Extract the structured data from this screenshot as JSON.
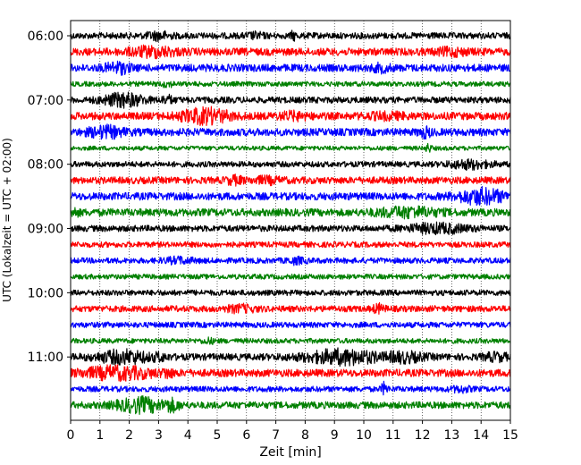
{
  "chart_data": {
    "type": "line",
    "title": "",
    "xlabel": "Zeit  [min]",
    "ylabel": "UTC (Lokalzeit = UTC + 02:00)",
    "xlim": [
      0,
      15
    ],
    "x_ticks": [
      "0",
      "1",
      "2",
      "3",
      "4",
      "5",
      "6",
      "7",
      "8",
      "9",
      "10",
      "11",
      "12",
      "13",
      "14",
      "15"
    ],
    "y_tick_labels": [
      "06:00",
      "07:00",
      "08:00",
      "09:00",
      "10:00",
      "11:00"
    ],
    "grid": "vertical dotted",
    "trace_colors": [
      "#000000",
      "#ff0000",
      "#0000ff",
      "#008000"
    ],
    "traces": [
      {
        "start": "06:00",
        "color": "#000000",
        "amplitude": 0.5,
        "bursts": [
          [
            3.0,
            0.4,
            1.0
          ],
          [
            6.3,
            0.3,
            0.8
          ],
          [
            7.6,
            0.1,
            1.0
          ]
        ]
      },
      {
        "start": "06:15",
        "color": "#ff0000",
        "amplitude": 0.6,
        "bursts": [
          [
            2.8,
            0.8,
            1.2
          ],
          [
            13.0,
            0.5,
            1.0
          ]
        ]
      },
      {
        "start": "06:30",
        "color": "#0000ff",
        "amplitude": 0.6,
        "bursts": [
          [
            1.6,
            0.4,
            1.3
          ],
          [
            10.6,
            0.3,
            1.0
          ]
        ]
      },
      {
        "start": "06:45",
        "color": "#008000",
        "amplitude": 0.4,
        "bursts": [
          [
            3.3,
            0.2,
            0.7
          ]
        ]
      },
      {
        "start": "07:00",
        "color": "#000000",
        "amplitude": 0.5,
        "bursts": [
          [
            1.8,
            0.7,
            1.4
          ],
          [
            3.3,
            0.2,
            1.0
          ]
        ]
      },
      {
        "start": "07:15",
        "color": "#ff0000",
        "amplitude": 0.6,
        "bursts": [
          [
            4.6,
            0.8,
            1.6
          ],
          [
            7.6,
            0.5,
            1.0
          ],
          [
            10.8,
            0.7,
            0.9
          ]
        ]
      },
      {
        "start": "07:30",
        "color": "#0000ff",
        "amplitude": 0.6,
        "bursts": [
          [
            1.2,
            0.6,
            1.3
          ],
          [
            12.1,
            0.2,
            1.2
          ]
        ]
      },
      {
        "start": "07:45",
        "color": "#008000",
        "amplitude": 0.35,
        "bursts": [
          [
            12.2,
            0.1,
            0.9
          ]
        ]
      },
      {
        "start": "08:00",
        "color": "#000000",
        "amplitude": 0.45,
        "bursts": [
          [
            13.6,
            0.7,
            1.0
          ]
        ]
      },
      {
        "start": "08:15",
        "color": "#ff0000",
        "amplitude": 0.55,
        "bursts": [
          [
            5.6,
            0.3,
            1.0
          ],
          [
            6.7,
            0.5,
            0.9
          ]
        ]
      },
      {
        "start": "08:30",
        "color": "#0000ff",
        "amplitude": 0.6,
        "bursts": [
          [
            14.0,
            0.8,
            1.6
          ]
        ]
      },
      {
        "start": "08:45",
        "color": "#008000",
        "amplitude": 0.6,
        "bursts": [
          [
            0.1,
            0.2,
            1.0
          ],
          [
            11.5,
            1.0,
            1.2
          ]
        ]
      },
      {
        "start": "09:00",
        "color": "#000000",
        "amplitude": 0.5,
        "bursts": [
          [
            12.5,
            1.0,
            1.1
          ]
        ]
      },
      {
        "start": "09:15",
        "color": "#ff0000",
        "amplitude": 0.45,
        "bursts": []
      },
      {
        "start": "09:30",
        "color": "#0000ff",
        "amplitude": 0.45,
        "bursts": [
          [
            3.7,
            0.5,
            0.8
          ],
          [
            7.7,
            0.3,
            0.8
          ]
        ]
      },
      {
        "start": "09:45",
        "color": "#008000",
        "amplitude": 0.4,
        "bursts": []
      },
      {
        "start": "10:00",
        "color": "#000000",
        "amplitude": 0.45,
        "bursts": []
      },
      {
        "start": "10:15",
        "color": "#ff0000",
        "amplitude": 0.5,
        "bursts": [
          [
            5.8,
            0.5,
            0.9
          ],
          [
            10.5,
            0.2,
            1.0
          ]
        ]
      },
      {
        "start": "10:30",
        "color": "#0000ff",
        "amplitude": 0.45,
        "bursts": []
      },
      {
        "start": "10:45",
        "color": "#008000",
        "amplitude": 0.4,
        "bursts": [
          [
            4.7,
            0.2,
            0.7
          ]
        ]
      },
      {
        "start": "11:00",
        "color": "#000000",
        "amplitude": 0.55,
        "bursts": [
          [
            1.8,
            0.9,
            1.4
          ],
          [
            3.0,
            0.3,
            1.0
          ],
          [
            9.3,
            1.3,
            1.5
          ],
          [
            11.3,
            0.7,
            1.2
          ],
          [
            14.5,
            0.4,
            1.0
          ]
        ]
      },
      {
        "start": "11:15",
        "color": "#ff0000",
        "amplitude": 0.6,
        "bursts": [
          [
            1.6,
            1.2,
            1.4
          ],
          [
            3.3,
            0.2,
            1.2
          ]
        ]
      },
      {
        "start": "11:30",
        "color": "#0000ff",
        "amplitude": 0.45,
        "bursts": [
          [
            10.7,
            0.1,
            1.3
          ],
          [
            13.3,
            0.3,
            0.8
          ]
        ]
      },
      {
        "start": "11:45",
        "color": "#008000",
        "amplitude": 0.55,
        "bursts": [
          [
            2.4,
            0.8,
            1.5
          ],
          [
            3.4,
            0.3,
            1.4
          ]
        ]
      }
    ]
  }
}
